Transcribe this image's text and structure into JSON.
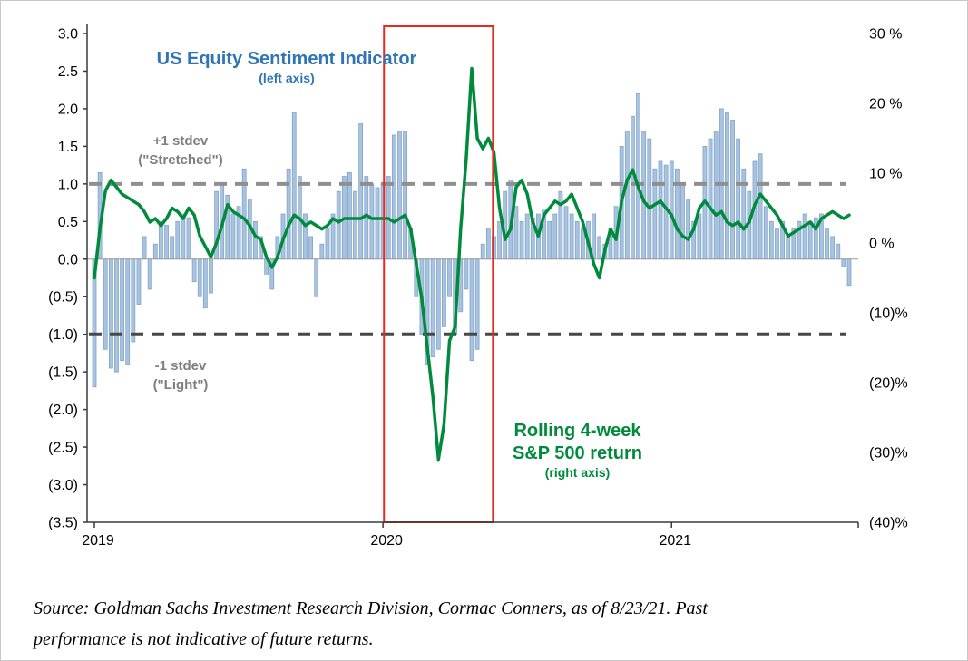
{
  "annotations": {
    "title": "US Equity Sentiment Indicator",
    "title_sub": "(left axis)",
    "upper_band_label_1": "+1 stdev",
    "upper_band_label_2": "(\"Stretched\")",
    "lower_band_label_1": "-1 stdev",
    "lower_band_label_2": "(\"Light\")",
    "line_label_1": "Rolling 4-week",
    "line_label_2": "S&P 500 return",
    "line_label_3": "(right axis)"
  },
  "source": {
    "line1": "Source: Goldman Sachs Investment Research Division, Cormac Conners, as of 8/23/21. Past",
    "line2": "performance is not indicative of future returns."
  },
  "colors": {
    "bar_fill": "#A9C3DF",
    "bar_stroke": "#7FA5CC",
    "line": "#008A3C",
    "title_text": "#2E74B6",
    "stdev_text": "#7F7F7F",
    "ref_line_upper": "#8F8F8F",
    "ref_line_lower": "#474747",
    "highlight": "#E8291D",
    "axis": "#3A3A3A",
    "zero_line": "#9B9B9B"
  },
  "chart_data": {
    "type": "bar",
    "subtype": "weekly bar series (left axis) with overlaid line series (right axis)",
    "title": "US Equity Sentiment Indicator vs Rolling 4-week S&P 500 return",
    "x_unit": "week",
    "x_year_ticks": [
      {
        "label": "2019",
        "week_index": 0
      },
      {
        "label": "2020",
        "week_index": 52
      },
      {
        "label": "2021",
        "week_index": 104
      }
    ],
    "axes": {
      "left": {
        "max": 3.0,
        "min": -3.5,
        "tick_values": [
          3.0,
          2.5,
          2.0,
          1.5,
          1.0,
          0.5,
          0.0,
          -0.5,
          -1.0,
          -1.5,
          -2.0,
          -2.5,
          -3.0,
          -3.5
        ],
        "tick_labels": [
          "3.0",
          "2.5",
          "2.0",
          "1.5",
          "1.0",
          "0.5",
          "0.0",
          "(0.5)",
          "(1.0)",
          "(1.5)",
          "(2.0)",
          "(2.5)",
          "(3.0)",
          "(3.5)"
        ]
      },
      "right": {
        "max": 30,
        "min": -40,
        "tick_values": [
          30,
          20,
          10,
          0,
          -10,
          -20,
          -30,
          -40
        ],
        "tick_labels": [
          "30 %",
          "20 %",
          "10 %",
          "0 %",
          "(10)%",
          "(20)%",
          "(30)%",
          "(40)%"
        ]
      }
    },
    "reference_lines": [
      {
        "axis": "left",
        "value": 1.0,
        "label": "+1 stdev (\"Stretched\")"
      },
      {
        "axis": "left",
        "value": -1.0,
        "label": "-1 stdev (\"Light\")"
      }
    ],
    "highlight_region": {
      "from_week_index": 53,
      "to_week_index": 71
    },
    "series": [
      {
        "name": "US Equity Sentiment Indicator",
        "type": "bar",
        "axis": "left",
        "values": [
          -1.7,
          1.15,
          -1.2,
          -1.45,
          -1.5,
          -1.35,
          -1.4,
          -1.1,
          -0.6,
          0.3,
          -0.4,
          0.2,
          0.5,
          0.45,
          0.3,
          0.5,
          0.6,
          0.55,
          -0.3,
          -0.5,
          -0.65,
          -0.45,
          0.9,
          1.0,
          0.85,
          0.6,
          0.7,
          1.2,
          0.8,
          0.5,
          0.3,
          -0.2,
          -0.4,
          0.3,
          0.6,
          1.2,
          1.95,
          1.1,
          0.6,
          0.3,
          -0.5,
          0.2,
          0.4,
          0.6,
          0.9,
          1.1,
          1.15,
          0.9,
          1.8,
          1.1,
          1.0,
          0.95,
          1.0,
          1.1,
          1.65,
          1.7,
          1.7,
          0.4,
          -0.5,
          -1.0,
          -1.4,
          -1.3,
          -1.2,
          -0.9,
          -0.5,
          -1.0,
          -0.7,
          -0.4,
          -1.35,
          -1.2,
          0.2,
          0.4,
          0.3,
          0.5,
          0.9,
          1.05,
          0.7,
          0.5,
          0.6,
          0.55,
          0.6,
          0.65,
          0.5,
          0.6,
          0.9,
          0.7,
          0.6,
          0.5,
          0.4,
          0.5,
          0.6,
          0.3,
          0.2,
          0.4,
          0.7,
          1.5,
          1.7,
          1.9,
          2.2,
          1.7,
          1.6,
          1.2,
          1.3,
          1.25,
          1.3,
          1.2,
          1.0,
          0.8,
          0.5,
          0.6,
          1.5,
          1.6,
          1.7,
          2.0,
          1.95,
          1.85,
          1.6,
          1.2,
          0.9,
          1.3,
          1.4,
          0.7,
          0.5,
          0.4,
          0.5,
          0.3,
          0.4,
          0.5,
          0.6,
          0.5,
          0.55,
          0.6,
          0.4,
          0.3,
          0.2,
          -0.1,
          -0.35
        ]
      },
      {
        "name": "Rolling 4-week S&P 500 return",
        "type": "line",
        "axis": "right",
        "values": [
          -5,
          2,
          7.5,
          9,
          8,
          7,
          6.5,
          6,
          5.5,
          4.5,
          3,
          3.5,
          2.5,
          3.5,
          5,
          4.5,
          3.5,
          5,
          4,
          1,
          -0.5,
          -2,
          0,
          2.5,
          5.5,
          4.5,
          4,
          3.5,
          2.5,
          1,
          0.5,
          -2,
          -3.5,
          -2,
          0.5,
          2.5,
          4,
          3.5,
          2.5,
          3,
          2.5,
          2,
          2.5,
          3.5,
          3,
          3.5,
          3.5,
          3.5,
          3.5,
          4,
          3.5,
          3.5,
          3.5,
          3.5,
          3,
          3.5,
          4,
          2,
          -3,
          -8,
          -15,
          -22,
          -31,
          -26,
          -14,
          -12,
          2,
          12,
          25,
          15,
          13.5,
          15,
          13,
          5,
          0.5,
          2,
          8,
          9,
          7,
          3,
          1,
          4,
          5,
          6,
          5.5,
          6,
          7,
          5,
          3,
          0,
          -3,
          -5,
          -1,
          2,
          0.5,
          6,
          9,
          10.5,
          8,
          6,
          5,
          5.5,
          6,
          5,
          4,
          2,
          1,
          0.5,
          2,
          5,
          6,
          5,
          4,
          4.5,
          3,
          2.5,
          3,
          2,
          3,
          5.5,
          7,
          6,
          5,
          4,
          2.5,
          1,
          1.5,
          2,
          2.5,
          3,
          2,
          3.5,
          4,
          4.5,
          4,
          3.5,
          4
        ]
      }
    ]
  }
}
